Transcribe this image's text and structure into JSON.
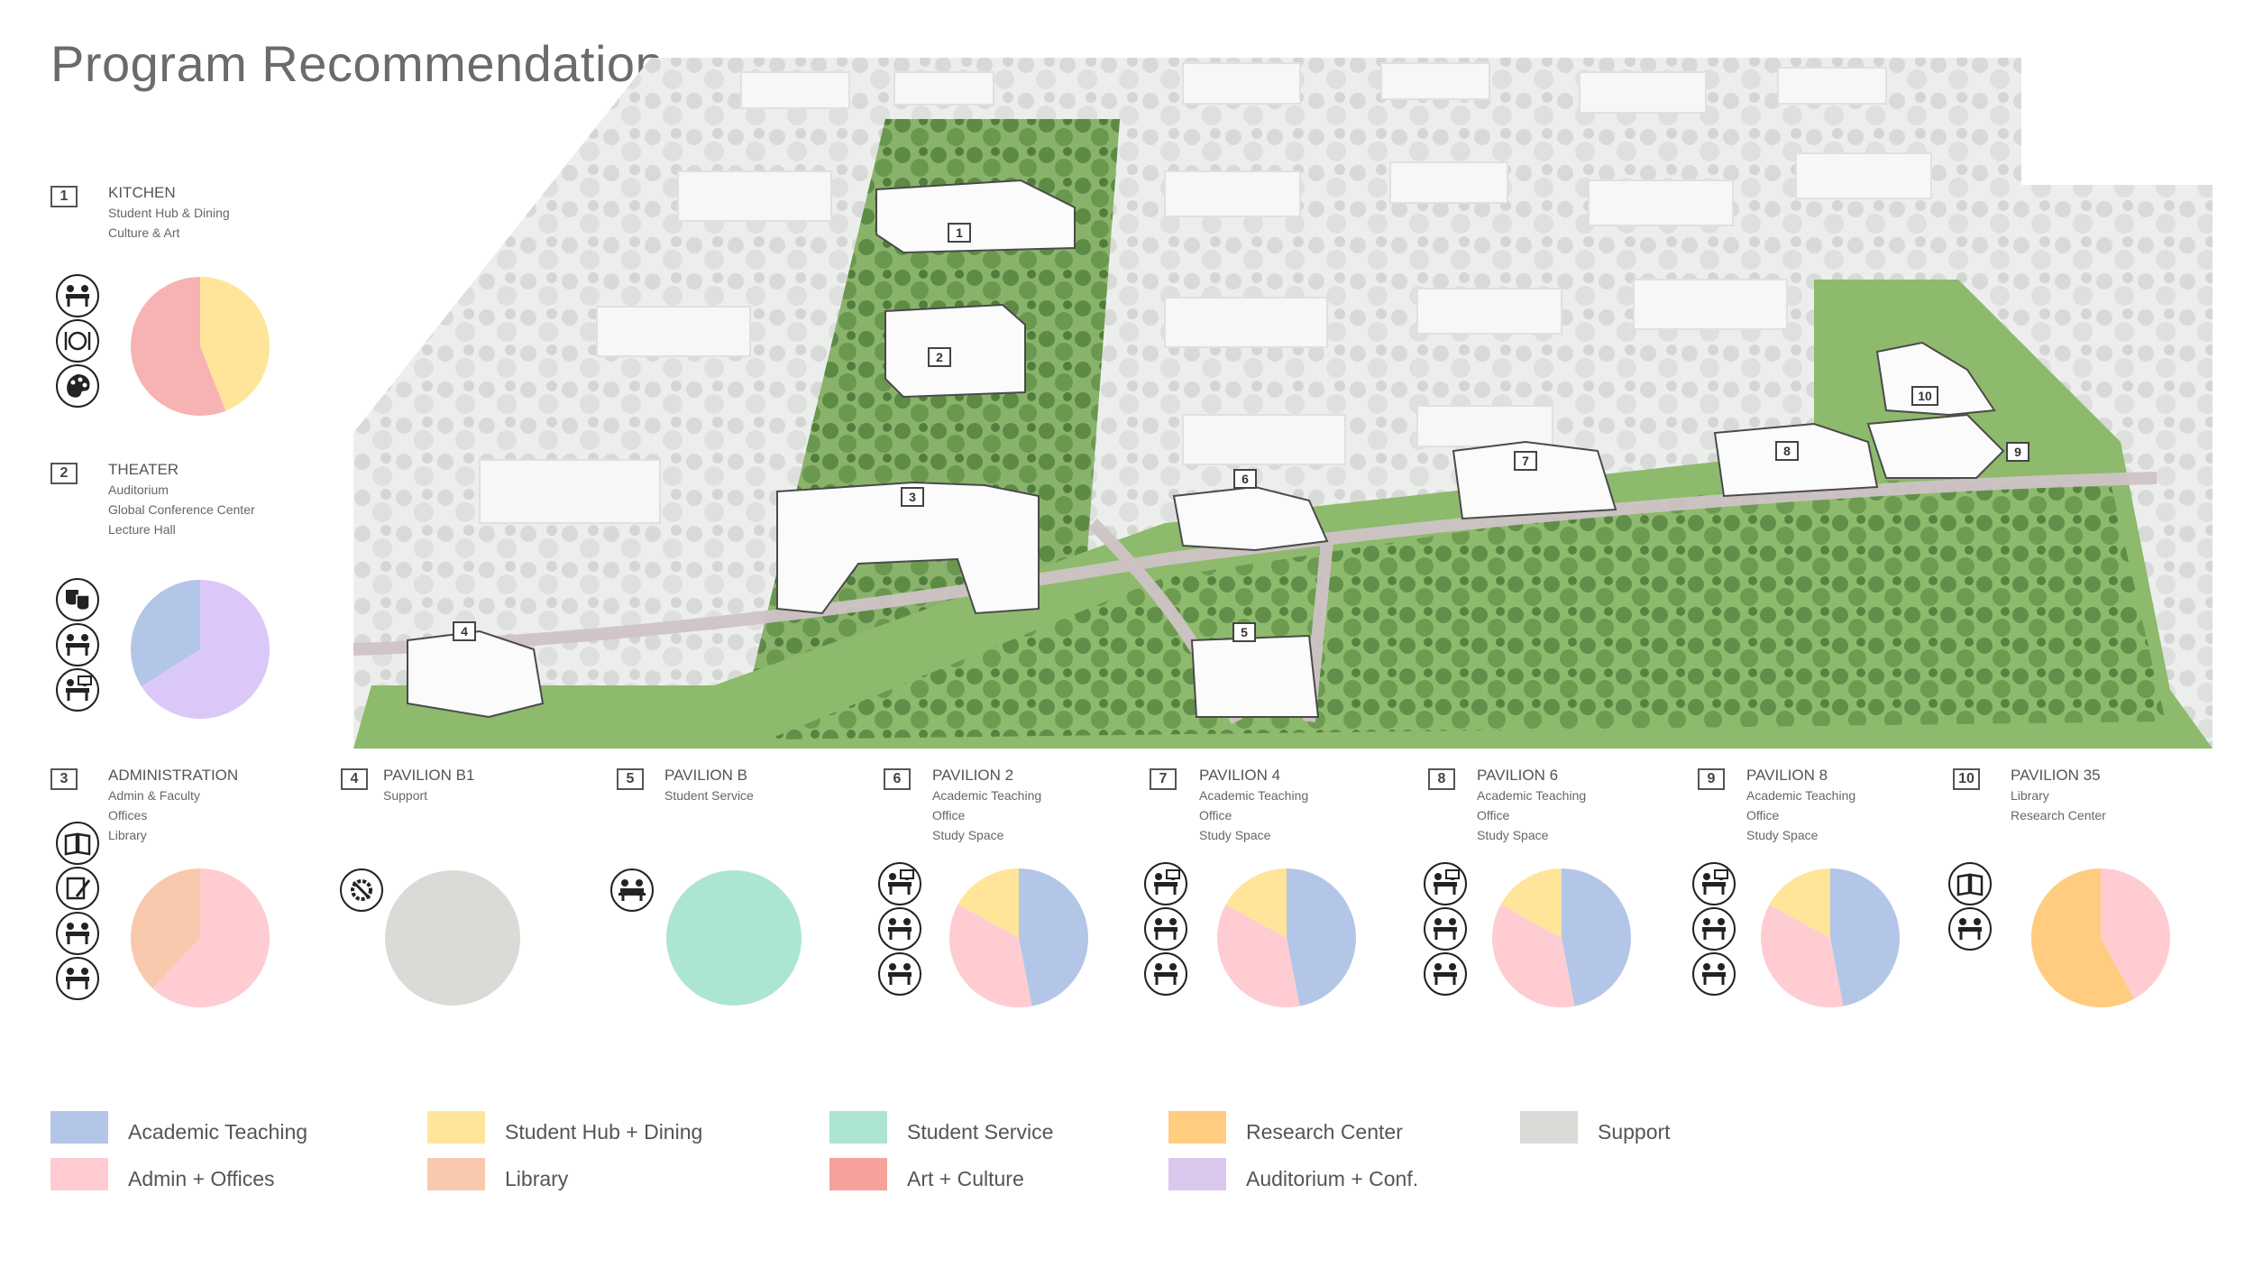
{
  "title": "Program Recommendation",
  "colors": {
    "academic": "#b4c6e7",
    "admin": "#ffccd2",
    "hub": "#ffe599",
    "library": "#f8c9ad",
    "service": "#ace5d3",
    "art": "#f6a29a",
    "research": "#ffcc80",
    "auditorium": "#dcc8ec",
    "support": "#d9dcd6"
  },
  "pavilions": [
    {
      "num": "1",
      "name": "KITCHEN",
      "lines": [
        "Student Hub & Dining",
        "Culture & Art"
      ],
      "icons": [
        "dining-people-icon",
        "plate-cutlery-icon",
        "palette-icon"
      ],
      "slices": [
        {
          "category": "Student Hub + Dining",
          "share": 0.44,
          "color": "#ffe599"
        },
        {
          "category": "Art + Culture",
          "share": 0.56,
          "color": "#f7b3b3"
        }
      ]
    },
    {
      "num": "2",
      "name": "THEATER",
      "lines": [
        "Auditorium",
        "Global Conference Center",
        "Lecture Hall"
      ],
      "icons": [
        "theater-masks-icon",
        "conference-table-icon",
        "lecture-board-icon"
      ],
      "slices": [
        {
          "category": "Auditorium + Conf.",
          "share": 0.66,
          "color": "#dcc8f8"
        },
        {
          "category": "Academic Teaching",
          "share": 0.34,
          "color": "#b4c6e7"
        }
      ]
    },
    {
      "num": "3",
      "name": "ADMINISTRATION",
      "lines": [
        "Admin & Faculty",
        "Offices",
        "Library"
      ],
      "icons": [
        "book-icon",
        "pen-paper-icon",
        "desk-worker-icon",
        "office-desk-icon"
      ],
      "slices": [
        {
          "category": "Admin + Offices",
          "share": 0.62,
          "color": "#ffccd2"
        },
        {
          "category": "Library",
          "share": 0.38,
          "color": "#f8c9ad"
        }
      ]
    },
    {
      "num": "4",
      "name": "PAVILION B1",
      "lines": [
        "Support"
      ],
      "icons": [
        "gear-tools-icon"
      ],
      "slices": [
        {
          "category": "Support",
          "share": 1.0,
          "color": "#d9dcd6"
        }
      ]
    },
    {
      "num": "5",
      "name": "PAVILION B",
      "lines": [
        "Student Service"
      ],
      "icons": [
        "service-desk-icon"
      ],
      "slices": [
        {
          "category": "Student Service",
          "share": 1.0,
          "color": "#ace5d3"
        }
      ]
    },
    {
      "num": "6",
      "name": "PAVILION 2",
      "lines": [
        "Academic Teaching",
        "Office",
        "Study Space"
      ],
      "icons": [
        "lecture-board-icon",
        "office-desk-icon",
        "study-group-icon"
      ],
      "slices": [
        {
          "category": "Academic Teaching",
          "share": 0.47,
          "color": "#b4c6e7"
        },
        {
          "category": "Admin + Offices",
          "share": 0.36,
          "color": "#ffccd2"
        },
        {
          "category": "Student Hub + Dining",
          "share": 0.17,
          "color": "#ffe599"
        }
      ]
    },
    {
      "num": "7",
      "name": "PAVILION 4",
      "lines": [
        "Academic Teaching",
        "Office",
        "Study Space"
      ],
      "icons": [
        "lecture-board-icon",
        "office-desk-icon",
        "study-group-icon"
      ],
      "slices": [
        {
          "category": "Academic Teaching",
          "share": 0.47,
          "color": "#b4c6e7"
        },
        {
          "category": "Admin + Offices",
          "share": 0.36,
          "color": "#ffccd2"
        },
        {
          "category": "Student Hub + Dining",
          "share": 0.17,
          "color": "#ffe599"
        }
      ]
    },
    {
      "num": "8",
      "name": "PAVILION 6",
      "lines": [
        "Academic Teaching",
        "Office",
        "Study Space"
      ],
      "icons": [
        "lecture-board-icon",
        "office-desk-icon",
        "study-group-icon"
      ],
      "slices": [
        {
          "category": "Academic Teaching",
          "share": 0.47,
          "color": "#b4c6e7"
        },
        {
          "category": "Admin + Offices",
          "share": 0.36,
          "color": "#ffccd2"
        },
        {
          "category": "Student Hub + Dining",
          "share": 0.17,
          "color": "#ffe599"
        }
      ]
    },
    {
      "num": "9",
      "name": "PAVILION 8",
      "lines": [
        "Academic Teaching",
        "Office",
        "Study Space"
      ],
      "icons": [
        "lecture-board-icon",
        "office-desk-icon",
        "study-group-icon"
      ],
      "slices": [
        {
          "category": "Academic Teaching",
          "share": 0.47,
          "color": "#b4c6e7"
        },
        {
          "category": "Admin + Offices",
          "share": 0.36,
          "color": "#ffccd2"
        },
        {
          "category": "Student Hub + Dining",
          "share": 0.17,
          "color": "#ffe599"
        }
      ]
    },
    {
      "num": "10",
      "name": "PAVILION 35",
      "lines": [
        "Library",
        "Research Center"
      ],
      "icons": [
        "book-icon",
        "office-desk-icon"
      ],
      "slices": [
        {
          "category": "Admin + Offices",
          "share": 0.42,
          "color": "#ffccd2"
        },
        {
          "category": "Research Center",
          "share": 0.58,
          "color": "#ffcc80"
        }
      ]
    }
  ],
  "legend": [
    {
      "label": "Academic Teaching",
      "color": "#b4c6e7"
    },
    {
      "label": "Admin + Offices",
      "color": "#ffccd2"
    },
    {
      "label": "Student Hub + Dining",
      "color": "#ffe599"
    },
    {
      "label": "Library",
      "color": "#f8c9ad"
    },
    {
      "label": "Student Service",
      "color": "#ace5d3"
    },
    {
      "label": "Art + Culture",
      "color": "#f6a29a"
    },
    {
      "label": "Research Center",
      "color": "#ffcc80"
    },
    {
      "label": "Auditorium + Conf.",
      "color": "#dcc8ec"
    },
    {
      "label": "Support",
      "color": "#d9dcd6"
    }
  ]
}
